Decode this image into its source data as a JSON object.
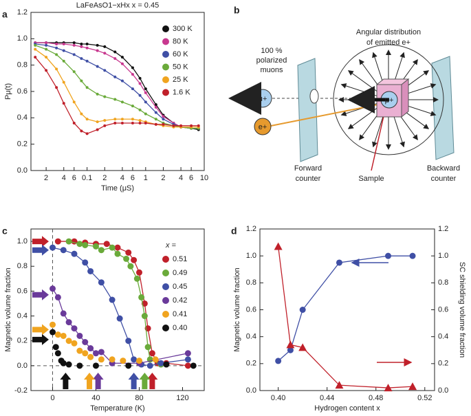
{
  "chart_data": [
    {
      "panel": "a",
      "type": "line",
      "title": "LaFeAsO1−xHx x = 0.45",
      "x_label": "Time (μS)",
      "y_label": "Pμ(t)",
      "x_scale": "log",
      "xlim": [
        0.011,
        10
      ],
      "xticks": [
        {
          "value": 0.02,
          "label": "2"
        },
        {
          "value": 0.04,
          "label": "4"
        },
        {
          "value": 0.06,
          "label": "6"
        },
        0.1,
        {
          "value": 0.2,
          "label": "2"
        },
        {
          "value": 0.4,
          "label": "4"
        },
        {
          "value": 0.6,
          "label": "6"
        },
        1,
        2,
        4,
        6,
        10
      ],
      "ylim": [
        0,
        1.2
      ],
      "yticks": [
        {
          "value": 0,
          "label": "0.0"
        },
        0.2,
        0.4,
        0.6,
        0.8,
        {
          "value": 1,
          "label": "1.0"
        },
        1.2
      ],
      "legend": "upper right",
      "x": [
        0.013,
        0.02,
        0.03,
        0.04,
        0.06,
        0.08,
        0.1,
        0.15,
        0.2,
        0.3,
        0.4,
        0.6,
        0.8,
        1,
        1.5,
        2,
        3,
        4,
        6,
        8
      ],
      "series": [
        {
          "name": "300 K",
          "color": "#111111",
          "values": [
            0.97,
            0.97,
            0.97,
            0.97,
            0.97,
            0.96,
            0.96,
            0.95,
            0.94,
            0.9,
            0.86,
            0.78,
            0.7,
            0.62,
            0.5,
            0.42,
            0.36,
            0.33,
            0.32,
            0.31
          ]
        },
        {
          "name": "80 K",
          "color": "#c8388f",
          "values": [
            0.97,
            0.97,
            0.96,
            0.96,
            0.95,
            0.94,
            0.93,
            0.91,
            0.89,
            0.85,
            0.81,
            0.73,
            0.66,
            0.59,
            0.48,
            0.41,
            0.36,
            0.33,
            0.32,
            0.32
          ]
        },
        {
          "name": "60 K",
          "color": "#3f4fa5",
          "values": [
            0.96,
            0.95,
            0.93,
            0.91,
            0.88,
            0.85,
            0.83,
            0.79,
            0.76,
            0.71,
            0.68,
            0.62,
            0.57,
            0.52,
            0.44,
            0.39,
            0.35,
            0.33,
            0.32,
            0.32
          ]
        },
        {
          "name": "50 K",
          "color": "#6aaa3a",
          "values": [
            0.95,
            0.92,
            0.88,
            0.83,
            0.75,
            0.68,
            0.63,
            0.58,
            0.56,
            0.54,
            0.52,
            0.49,
            0.46,
            0.43,
            0.39,
            0.36,
            0.34,
            0.33,
            0.32,
            0.32
          ]
        },
        {
          "name": "25 K",
          "color": "#f0a41f",
          "values": [
            0.92,
            0.86,
            0.77,
            0.67,
            0.52,
            0.43,
            0.39,
            0.37,
            0.38,
            0.39,
            0.39,
            0.39,
            0.38,
            0.37,
            0.35,
            0.34,
            0.33,
            0.33,
            0.33,
            0.33
          ]
        },
        {
          "name": "1.6 K",
          "color": "#c0202a",
          "values": [
            0.86,
            0.76,
            0.63,
            0.51,
            0.36,
            0.3,
            0.28,
            0.31,
            0.34,
            0.36,
            0.36,
            0.36,
            0.36,
            0.36,
            0.35,
            0.35,
            0.34,
            0.34,
            0.34,
            0.34
          ]
        }
      ]
    },
    {
      "panel": "c",
      "type": "scatter",
      "x_label": "Temperature (K)",
      "y_label": "Magnetic volume fraction",
      "xlim": [
        -20,
        140
      ],
      "xticks": [
        0,
        40,
        80,
        120
      ],
      "ylim": [
        -0.2,
        1.1
      ],
      "yticks": [
        -0.2,
        {
          "value": 0,
          "label": "0.0"
        },
        0.2,
        0.4,
        0.6,
        0.8,
        {
          "value": 1,
          "label": "1.0"
        }
      ],
      "reference_lines": {
        "x": 0,
        "y": 0
      },
      "legend": "upper right",
      "legend_title": "x =",
      "series": [
        {
          "name": "0.51",
          "color": "#c0202a",
          "fit": true,
          "arrow_y": 1.0,
          "arrow_x": 92,
          "x": [
            5,
            20,
            30,
            40,
            50,
            60,
            70,
            75,
            80,
            85,
            88,
            92,
            97,
            105,
            125
          ],
          "values": [
            1.0,
            1.0,
            0.99,
            0.98,
            0.98,
            0.95,
            0.91,
            0.85,
            0.75,
            0.5,
            0.3,
            0.1,
            0.02,
            0.02,
            0.0
          ]
        },
        {
          "name": "0.49",
          "color": "#6aaa3a",
          "fit": true,
          "arrow_x": 85,
          "x": [
            15,
            25,
            30,
            40,
            45,
            55,
            60,
            68,
            72,
            78,
            82,
            85,
            88,
            90,
            100
          ],
          "values": [
            1.0,
            0.98,
            0.97,
            0.96,
            0.93,
            0.95,
            0.9,
            0.86,
            0.8,
            0.7,
            0.55,
            0.4,
            0.15,
            0.05,
            0.01
          ]
        },
        {
          "name": "0.45",
          "color": "#3f4fa5",
          "fit": true,
          "arrow_y": 0.93,
          "arrow_x": 75,
          "x": [
            0,
            10,
            20,
            30,
            35,
            45,
            55,
            62,
            70,
            75,
            82,
            90,
            100,
            125
          ],
          "values": [
            0.95,
            0.93,
            0.9,
            0.83,
            0.76,
            0.67,
            0.53,
            0.38,
            0.2,
            0.05,
            0.01,
            0.0,
            0.02,
            0.05
          ]
        },
        {
          "name": "0.42",
          "color": "#6a3a9a",
          "fit": true,
          "arrow_y": 0.57,
          "arrow_x": 42,
          "x": [
            0,
            5,
            10,
            15,
            20,
            25,
            30,
            35,
            40,
            45,
            55,
            80,
            125
          ],
          "values": [
            0.62,
            0.55,
            0.42,
            0.35,
            0.3,
            0.24,
            0.19,
            0.14,
            0.1,
            0.11,
            0.02,
            0.02,
            0.1
          ]
        },
        {
          "name": "0.41",
          "color": "#f0a41f",
          "fit": false,
          "arrow_y": 0.29,
          "arrow_x": 34,
          "x": [
            0,
            5,
            10,
            15,
            20,
            25,
            30,
            35,
            45,
            55,
            65,
            80,
            95
          ],
          "values": [
            0.33,
            0.25,
            0.24,
            0.2,
            0.18,
            0.12,
            0.1,
            0.07,
            0.05,
            0.05,
            0.04,
            0.04,
            0.05
          ]
        },
        {
          "name": "0.40",
          "color": "#111111",
          "fit": false,
          "arrow_y": 0.21,
          "arrow_x": 12,
          "x": [
            0,
            3,
            5,
            8,
            10,
            15,
            25,
            40,
            70,
            105,
            130
          ],
          "values": [
            0.27,
            0.15,
            0.1,
            0.04,
            0.02,
            0.01,
            0.0,
            0.0,
            0.0,
            0.01,
            0.0
          ]
        }
      ]
    },
    {
      "panel": "d",
      "type": "scatter",
      "x_label": "Hydrogen content x",
      "y_label": "Magnetic volume fraction",
      "y2_label": "SC shielding volume fraction",
      "xlim": [
        0.385,
        0.528
      ],
      "xticks": [
        {
          "value": 0.4,
          "label": "0.40"
        },
        0.44,
        0.48,
        0.52
      ],
      "ylim": [
        0,
        1.2
      ],
      "yticks": [
        {
          "value": 0,
          "label": "0.0"
        },
        0.2,
        0.4,
        0.6,
        0.8,
        {
          "value": 1,
          "label": "1.0"
        },
        1.2
      ],
      "y2lim": [
        0,
        1.2
      ],
      "y2ticks": [
        {
          "value": 0,
          "label": "0.0"
        },
        0.2,
        0.4,
        0.6,
        0.8,
        {
          "value": 1,
          "label": "1.0"
        },
        1.2
      ],
      "x": [
        0.4,
        0.41,
        0.42,
        0.45,
        0.49,
        0.51
      ],
      "series": [
        {
          "color": "#3f4fa5",
          "fit": true,
          "values": [
            0.22,
            0.3,
            0.6,
            0.95,
            1.0,
            1.0
          ]
        },
        {
          "color": "#c0202a",
          "fit": true,
          "axis": "y2",
          "marker": "triangle",
          "values": [
            1.07,
            0.34,
            0.32,
            0.04,
            0.02,
            0.03
          ]
        }
      ]
    }
  ],
  "diagram": {
    "panel": "b",
    "emission": [
      "Angular distribution",
      "of emitted e+"
    ],
    "muons": [
      "100 %",
      "polarized",
      "muons"
    ],
    "muon": "μ+",
    "sample_muon": "μ+",
    "positron": "e+",
    "forward": [
      "Forward",
      "counter"
    ],
    "backward": [
      "Backward",
      "counter"
    ],
    "sample": "Sample"
  }
}
